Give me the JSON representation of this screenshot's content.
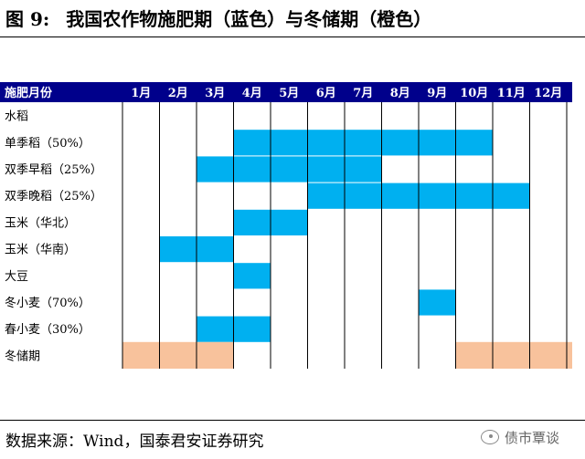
{
  "figure": {
    "label": "图 9:",
    "title": "我国农作物施肥期（蓝色）与冬储期（橙色）"
  },
  "source": "数据来源：Wind，国泰君安证券研究",
  "watermark": "债市覃谈",
  "colors": {
    "header_bg": "#00008B",
    "header_text": "#FFFFFF",
    "fertilization": "#00B0F0",
    "storage": "#F8C29C",
    "grid": "#000000"
  },
  "chart_data": {
    "type": "table",
    "header_label": "施肥月份",
    "months": [
      "1月",
      "2月",
      "3月",
      "4月",
      "5月",
      "6月",
      "7月",
      "8月",
      "9月",
      "10月",
      "11月",
      "12月"
    ],
    "legend": {
      "fertilization": "蓝色",
      "storage": "橙色"
    },
    "rows": [
      {
        "crop": "水稻",
        "kind": "fertilization",
        "spans": []
      },
      {
        "crop": "单季稻（50%）",
        "kind": "fertilization",
        "spans": [
          [
            4,
            10
          ]
        ]
      },
      {
        "crop": "双季早稻（25%）",
        "kind": "fertilization",
        "spans": [
          [
            3,
            7
          ]
        ]
      },
      {
        "crop": "双季晚稻（25%）",
        "kind": "fertilization",
        "spans": [
          [
            6,
            11
          ]
        ]
      },
      {
        "crop": "玉米（华北）",
        "kind": "fertilization",
        "spans": [
          [
            4,
            5
          ]
        ]
      },
      {
        "crop": "玉米（华南）",
        "kind": "fertilization",
        "spans": [
          [
            2,
            3
          ]
        ]
      },
      {
        "crop": "大豆",
        "kind": "fertilization",
        "spans": [
          [
            4,
            4
          ]
        ]
      },
      {
        "crop": "冬小麦（70%）",
        "kind": "fertilization",
        "spans": [
          [
            9,
            9
          ]
        ]
      },
      {
        "crop": "春小麦（30%）",
        "kind": "fertilization",
        "spans": [
          [
            3,
            4
          ]
        ]
      },
      {
        "crop": "冬储期",
        "kind": "storage",
        "spans": [
          [
            1,
            3
          ],
          [
            10,
            12
          ]
        ]
      }
    ]
  }
}
